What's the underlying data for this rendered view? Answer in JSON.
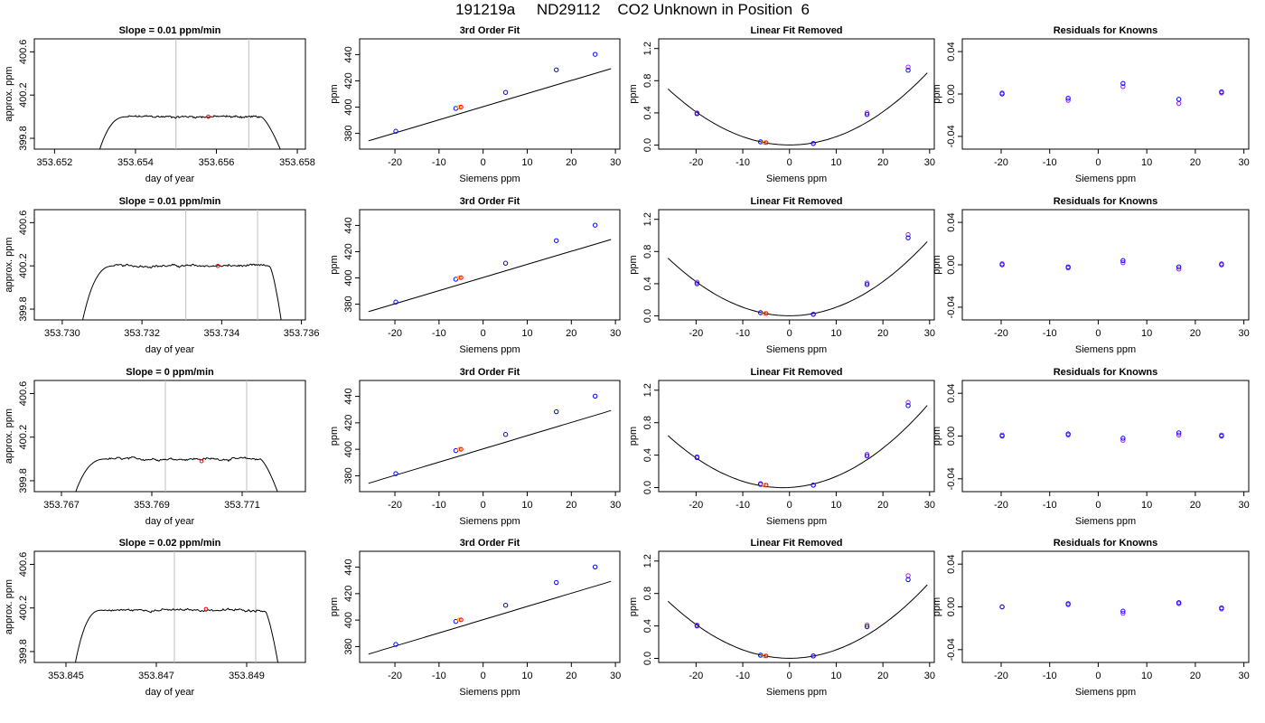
{
  "title": "191219a     ND29112    CO2 Unknown in Position  6",
  "colors": {
    "trace": "#000000",
    "frame": "#000000",
    "window_line": "#bebebe",
    "known": "#0000ff",
    "known_alt": "#a020f0",
    "unknown": "#ff0000",
    "unknown_alt": "#ffa500"
  },
  "chart_data": [
    {
      "row": 1,
      "type": "line",
      "title": "Slope =  0.01  ppm/min",
      "xlabel": "day of year",
      "ylabel": "approx. ppm",
      "xlim": [
        353.6515,
        353.6582
      ],
      "xticks": [
        353.652,
        353.654,
        353.656,
        353.658
      ],
      "xtick_labels": [
        "353.652",
        "353.654",
        "353.656",
        "353.658"
      ],
      "ylim": [
        399.7,
        400.72
      ],
      "yticks": [
        399.8,
        400.2,
        400.6
      ],
      "ytick_labels": [
        "399.8",
        "400.2",
        "400.6"
      ],
      "window": [
        353.655,
        353.6568
      ],
      "point": {
        "x": 353.6558,
        "y": 400.0
      },
      "trace": {
        "start": 353.6531,
        "plateau_start": 353.6538,
        "plateau_end": 353.6571,
        "end": 353.6576,
        "level": 400.0,
        "noise": 0.012,
        "top_y": 400.74,
        "bottom_y": 399.68
      }
    },
    {
      "row": 1,
      "type": "scatter",
      "title": "3rd Order Fit",
      "xlabel": "Siemens ppm",
      "ylabel": "ppm",
      "xlim": [
        -28,
        31
      ],
      "xticks": [
        -20,
        -10,
        0,
        10,
        20,
        30
      ],
      "xtick_labels": [
        "-20",
        "-10",
        "0",
        "10",
        "20",
        "30"
      ],
      "ylim": [
        368,
        452
      ],
      "yticks": [
        380,
        400,
        420,
        440
      ],
      "ytick_labels": [
        "380",
        "400",
        "420",
        "440"
      ],
      "fit": {
        "x0": -26,
        "x1": 29,
        "slope": 1.0,
        "intercept": 400.3
      },
      "knowns": [
        [
          -19.8,
          381.6
        ],
        [
          -6.2,
          399.0
        ],
        [
          5.1,
          411.2
        ],
        [
          16.6,
          428.4
        ],
        [
          25.4,
          440.2
        ]
      ],
      "unknowns": [
        [
          -5.0,
          400.0
        ]
      ]
    },
    {
      "row": 1,
      "type": "scatter",
      "title": "Linear Fit Removed",
      "xlabel": "Siemens ppm",
      "ylabel": "ppm",
      "xlim": [
        -28,
        31
      ],
      "xticks": [
        -20,
        -10,
        0,
        10,
        20,
        30
      ],
      "xtick_labels": [
        "-20",
        "-10",
        "0",
        "10",
        "20",
        "30"
      ],
      "ylim": [
        -0.05,
        1.32
      ],
      "yticks": [
        0.0,
        0.4,
        0.8,
        1.2
      ],
      "ytick_labels": [
        "0.0",
        "0.4",
        "0.8",
        "1.2"
      ],
      "fit": {
        "a": 0.00103,
        "b": 0.0,
        "c": 0.0015,
        "x0": -26,
        "x1": 29.5
      },
      "knowns": [
        [
          -19.8,
          0.39
        ],
        [
          -6.2,
          0.04
        ],
        [
          5.1,
          0.02
        ],
        [
          16.6,
          0.38
        ],
        [
          25.4,
          0.93
        ]
      ],
      "knowns_alt": [
        [
          -19.8,
          0.4
        ],
        [
          -6.2,
          0.04
        ],
        [
          5.1,
          0.02
        ],
        [
          16.6,
          0.4
        ],
        [
          25.4,
          0.97
        ]
      ],
      "unknowns": [
        [
          -5.0,
          0.03
        ]
      ]
    },
    {
      "row": 1,
      "type": "scatter",
      "title": "Residuals for Knowns",
      "xlabel": "Siemens ppm",
      "ylabel": "ppm",
      "xlim": [
        -28,
        31
      ],
      "xticks": [
        -20,
        -10,
        0,
        10,
        20,
        30
      ],
      "xtick_labels": [
        "-20",
        "-10",
        "0",
        "10",
        "20",
        "30"
      ],
      "ylim": [
        -0.052,
        0.052
      ],
      "yticks": [
        -0.04,
        0.0,
        0.04
      ],
      "ytick_labels": [
        "-0.04",
        "0.00",
        "0.04"
      ],
      "knowns": [
        [
          -19.8,
          0.0
        ],
        [
          -6.2,
          -0.004
        ],
        [
          5.1,
          0.01
        ],
        [
          16.6,
          -0.005
        ],
        [
          25.4,
          0.002
        ]
      ],
      "knowns_alt": [
        [
          -19.8,
          0.001
        ],
        [
          -6.2,
          -0.006
        ],
        [
          5.1,
          0.007
        ],
        [
          16.6,
          -0.009
        ],
        [
          25.4,
          0.001
        ]
      ]
    },
    {
      "row": 2,
      "type": "line",
      "title": "Slope =  0.01  ppm/min",
      "xlabel": "day of year",
      "ylabel": "approx. ppm",
      "xlim": [
        353.7293,
        353.7361
      ],
      "xticks": [
        353.73,
        353.732,
        353.734,
        353.736
      ],
      "xtick_labels": [
        "353.730",
        "353.732",
        "353.734",
        "353.736"
      ],
      "ylim": [
        399.7,
        400.72
      ],
      "yticks": [
        399.8,
        400.2,
        400.6
      ],
      "ytick_labels": [
        "399.8",
        "400.2",
        "400.6"
      ],
      "window": [
        353.7331,
        353.7349
      ],
      "point": {
        "x": 353.7339,
        "y": 400.2
      },
      "trace": {
        "start": 353.7305,
        "plateau_start": 353.7313,
        "plateau_end": 353.7352,
        "end": 353.7355,
        "level": 400.2,
        "noise": 0.012,
        "top_y": 400.74,
        "bottom_y": 399.68
      }
    },
    {
      "row": 2,
      "type": "scatter",
      "title": "3rd Order Fit",
      "xlabel": "Siemens ppm",
      "ylabel": "ppm",
      "xlim": [
        -28,
        31
      ],
      "xticks": [
        -20,
        -10,
        0,
        10,
        20,
        30
      ],
      "xtick_labels": [
        "-20",
        "-10",
        "0",
        "10",
        "20",
        "30"
      ],
      "ylim": [
        368,
        452
      ],
      "yticks": [
        380,
        400,
        420,
        440
      ],
      "ytick_labels": [
        "380",
        "400",
        "420",
        "440"
      ],
      "fit": {
        "x0": -26,
        "x1": 29,
        "slope": 1.0,
        "intercept": 400.3
      },
      "knowns": [
        [
          -19.8,
          381.6
        ],
        [
          -6.2,
          399.0
        ],
        [
          5.1,
          411.2
        ],
        [
          16.6,
          428.4
        ],
        [
          25.4,
          440.2
        ]
      ],
      "unknowns": [
        [
          -5.0,
          400.2
        ]
      ]
    },
    {
      "row": 2,
      "type": "scatter",
      "title": "Linear Fit Removed",
      "xlabel": "Siemens ppm",
      "ylabel": "ppm",
      "xlim": [
        -28,
        31
      ],
      "xticks": [
        -20,
        -10,
        0,
        10,
        20,
        30
      ],
      "xtick_labels": [
        "-20",
        "-10",
        "0",
        "10",
        "20",
        "30"
      ],
      "ylim": [
        -0.05,
        1.32
      ],
      "yticks": [
        0.0,
        0.4,
        0.8,
        1.2
      ],
      "ytick_labels": [
        "0.0",
        "0.4",
        "0.8",
        "1.2"
      ],
      "fit": {
        "a": 0.00106,
        "b": 0.0,
        "c": 0.0015,
        "x0": -26,
        "x1": 29.5
      },
      "knowns": [
        [
          -19.8,
          0.4
        ],
        [
          -6.2,
          0.04
        ],
        [
          5.1,
          0.02
        ],
        [
          16.6,
          0.39
        ],
        [
          25.4,
          0.97
        ]
      ],
      "knowns_alt": [
        [
          -19.8,
          0.42
        ],
        [
          -6.2,
          0.04
        ],
        [
          5.1,
          0.02
        ],
        [
          16.6,
          0.41
        ],
        [
          25.4,
          1.01
        ]
      ],
      "unknowns": [
        [
          -5.0,
          0.03
        ]
      ]
    },
    {
      "row": 2,
      "type": "scatter",
      "title": "Residuals for Knowns",
      "xlabel": "Siemens ppm",
      "ylabel": "ppm",
      "xlim": [
        -28,
        31
      ],
      "xticks": [
        -20,
        -10,
        0,
        10,
        20,
        30
      ],
      "xtick_labels": [
        "-20",
        "-10",
        "0",
        "10",
        "20",
        "30"
      ],
      "ylim": [
        -0.052,
        0.052
      ],
      "yticks": [
        -0.04,
        0.0,
        0.04
      ],
      "ytick_labels": [
        "-0.04",
        "0.00",
        "0.04"
      ],
      "knowns": [
        [
          -19.8,
          0.0
        ],
        [
          -6.2,
          -0.002
        ],
        [
          5.1,
          0.004
        ],
        [
          16.6,
          -0.002
        ],
        [
          25.4,
          0.0
        ]
      ],
      "knowns_alt": [
        [
          -19.8,
          0.001
        ],
        [
          -6.2,
          -0.003
        ],
        [
          5.1,
          0.002
        ],
        [
          16.6,
          -0.004
        ],
        [
          25.4,
          0.001
        ]
      ]
    },
    {
      "row": 3,
      "type": "line",
      "title": "Slope =  0  ppm/min",
      "xlabel": "day of year",
      "ylabel": "approx. ppm",
      "xlim": [
        353.7664,
        353.7724
      ],
      "xticks": [
        353.767,
        353.769,
        353.771
      ],
      "xtick_labels": [
        "353.767",
        "353.769",
        "353.771"
      ],
      "ylim": [
        399.7,
        400.72
      ],
      "yticks": [
        399.8,
        400.2,
        400.6
      ],
      "ytick_labels": [
        "399.8",
        "400.2",
        "400.6"
      ],
      "window": [
        353.7693,
        353.7711
      ],
      "point": {
        "x": 353.7701,
        "y": 399.98
      },
      "trace": {
        "start": 353.7673,
        "plateau_start": 353.768,
        "plateau_end": 353.7714,
        "end": 353.7718,
        "level": 400.0,
        "noise": 0.012,
        "top_y": 400.74,
        "bottom_y": 399.68
      }
    },
    {
      "row": 3,
      "type": "scatter",
      "title": "3rd Order Fit",
      "xlabel": "Siemens ppm",
      "ylabel": "ppm",
      "xlim": [
        -28,
        31
      ],
      "xticks": [
        -20,
        -10,
        0,
        10,
        20,
        30
      ],
      "xtick_labels": [
        "-20",
        "-10",
        "0",
        "10",
        "20",
        "30"
      ],
      "ylim": [
        368,
        452
      ],
      "yticks": [
        380,
        400,
        420,
        440
      ],
      "ytick_labels": [
        "380",
        "400",
        "420",
        "440"
      ],
      "fit": {
        "x0": -26,
        "x1": 29,
        "slope": 1.0,
        "intercept": 400.3
      },
      "knowns": [
        [
          -19.8,
          381.6
        ],
        [
          -6.2,
          399.0
        ],
        [
          5.1,
          411.2
        ],
        [
          16.6,
          428.4
        ],
        [
          25.4,
          440.2
        ]
      ],
      "unknowns": [
        [
          -5.0,
          400.0
        ]
      ]
    },
    {
      "row": 3,
      "type": "scatter",
      "title": "Linear Fit Removed",
      "xlabel": "Siemens ppm",
      "ylabel": "ppm",
      "xlim": [
        -28,
        31
      ],
      "xticks": [
        -20,
        -10,
        0,
        10,
        20,
        30
      ],
      "xtick_labels": [
        "-20",
        "-10",
        "0",
        "10",
        "20",
        "30"
      ],
      "ylim": [
        -0.05,
        1.32
      ],
      "yticks": [
        0.0,
        0.4,
        0.8,
        1.2
      ],
      "ytick_labels": [
        "0.0",
        "0.4",
        "0.8",
        "1.2"
      ],
      "fit": {
        "a": 0.00106,
        "b": 0.003,
        "c": 0.0015,
        "x0": -26,
        "x1": 29.5
      },
      "knowns": [
        [
          -19.8,
          0.37
        ],
        [
          -6.2,
          0.04
        ],
        [
          5.1,
          0.03
        ],
        [
          16.6,
          0.39
        ],
        [
          25.4,
          1.01
        ]
      ],
      "knowns_alt": [
        [
          -19.8,
          0.38
        ],
        [
          -6.2,
          0.05
        ],
        [
          5.1,
          0.03
        ],
        [
          16.6,
          0.41
        ],
        [
          25.4,
          1.05
        ]
      ],
      "unknowns": [
        [
          -5.0,
          0.03
        ]
      ]
    },
    {
      "row": 3,
      "type": "scatter",
      "title": "Residuals for Knowns",
      "xlabel": "Siemens ppm",
      "ylabel": "ppm",
      "xlim": [
        -28,
        31
      ],
      "xticks": [
        -20,
        -10,
        0,
        10,
        20,
        30
      ],
      "xtick_labels": [
        "-20",
        "-10",
        "0",
        "10",
        "20",
        "30"
      ],
      "ylim": [
        -0.052,
        0.052
      ],
      "yticks": [
        -0.04,
        0.0,
        0.04
      ],
      "ytick_labels": [
        "-0.04",
        "0.00",
        "0.04"
      ],
      "knowns": [
        [
          -19.8,
          0.0
        ],
        [
          -6.2,
          0.002
        ],
        [
          5.1,
          -0.002
        ],
        [
          16.6,
          0.003
        ],
        [
          25.4,
          0.0
        ]
      ],
      "knowns_alt": [
        [
          -19.8,
          0.001
        ],
        [
          -6.2,
          0.001
        ],
        [
          5.1,
          -0.004
        ],
        [
          16.6,
          0.001
        ],
        [
          25.4,
          0.001
        ]
      ]
    },
    {
      "row": 4,
      "type": "line",
      "title": "Slope =  0.02  ppm/min",
      "xlabel": "day of year",
      "ylabel": "approx. ppm",
      "xlim": [
        353.8443,
        353.8503
      ],
      "xticks": [
        353.845,
        353.847,
        353.849
      ],
      "xtick_labels": [
        "353.845",
        "353.847",
        "353.849"
      ],
      "ylim": [
        399.7,
        400.72
      ],
      "yticks": [
        399.8,
        400.2,
        400.6
      ],
      "ytick_labels": [
        "399.8",
        "400.2",
        "400.6"
      ],
      "window": [
        353.8474,
        353.8492
      ],
      "point": {
        "x": 353.8481,
        "y": 400.19
      },
      "trace": {
        "start": 353.8452,
        "plateau_start": 353.8458,
        "plateau_end": 353.8494,
        "end": 353.8497,
        "level": 400.18,
        "noise": 0.012,
        "top_y": 400.74,
        "bottom_y": 399.68
      }
    },
    {
      "row": 4,
      "type": "scatter",
      "title": "3rd Order Fit",
      "xlabel": "Siemens ppm",
      "ylabel": "ppm",
      "xlim": [
        -28,
        31
      ],
      "xticks": [
        -20,
        -10,
        0,
        10,
        20,
        30
      ],
      "xtick_labels": [
        "-20",
        "-10",
        "0",
        "10",
        "20",
        "30"
      ],
      "ylim": [
        368,
        452
      ],
      "yticks": [
        380,
        400,
        420,
        440
      ],
      "ytick_labels": [
        "380",
        "400",
        "420",
        "440"
      ],
      "fit": {
        "x0": -26,
        "x1": 29,
        "slope": 1.0,
        "intercept": 400.3
      },
      "knowns": [
        [
          -19.8,
          381.6
        ],
        [
          -6.2,
          399.0
        ],
        [
          5.1,
          411.2
        ],
        [
          16.6,
          428.4
        ],
        [
          25.4,
          440.2
        ]
      ],
      "unknowns": [
        [
          -5.0,
          400.2
        ]
      ]
    },
    {
      "row": 4,
      "type": "scatter",
      "title": "Linear Fit Removed",
      "xlabel": "Siemens ppm",
      "ylabel": "ppm",
      "xlim": [
        -28,
        31
      ],
      "xticks": [
        -20,
        -10,
        0,
        10,
        20,
        30
      ],
      "xtick_labels": [
        "-20",
        "-10",
        "0",
        "10",
        "20",
        "30"
      ],
      "ylim": [
        -0.05,
        1.32
      ],
      "yticks": [
        0.0,
        0.4,
        0.8,
        1.2
      ],
      "ytick_labels": [
        "0.0",
        "0.4",
        "0.8",
        "1.2"
      ],
      "fit": {
        "a": 0.00104,
        "b": 0.0,
        "c": 0.0015,
        "x0": -26,
        "x1": 29.5
      },
      "knowns": [
        [
          -19.8,
          0.4
        ],
        [
          -6.2,
          0.04
        ],
        [
          5.1,
          0.03
        ],
        [
          16.6,
          0.39
        ],
        [
          25.4,
          0.97
        ]
      ],
      "knowns_alt": [
        [
          -19.8,
          0.41
        ],
        [
          -6.2,
          0.04
        ],
        [
          5.1,
          0.03
        ],
        [
          16.6,
          0.41
        ],
        [
          25.4,
          1.02
        ]
      ],
      "unknowns": [
        [
          -5.0,
          0.03
        ]
      ]
    },
    {
      "row": 4,
      "type": "scatter",
      "title": "Residuals for Knowns",
      "xlabel": "Siemens ppm",
      "ylabel": "ppm",
      "xlim": [
        -28,
        31
      ],
      "xticks": [
        -20,
        -10,
        0,
        10,
        20,
        30
      ],
      "xtick_labels": [
        "-20",
        "-10",
        "0",
        "10",
        "20",
        "30"
      ],
      "ylim": [
        -0.052,
        0.052
      ],
      "yticks": [
        -0.04,
        0.0,
        0.04
      ],
      "ytick_labels": [
        "-0.04",
        "0.00",
        "0.04"
      ],
      "knowns": [
        [
          -19.8,
          0.0
        ],
        [
          -6.2,
          0.003
        ],
        [
          5.1,
          -0.004
        ],
        [
          16.6,
          0.004
        ],
        [
          25.4,
          -0.001
        ]
      ],
      "knowns_alt": [
        [
          -19.8,
          0.0
        ],
        [
          -6.2,
          0.002
        ],
        [
          5.1,
          -0.006
        ],
        [
          16.6,
          0.003
        ],
        [
          25.4,
          -0.002
        ]
      ]
    }
  ]
}
